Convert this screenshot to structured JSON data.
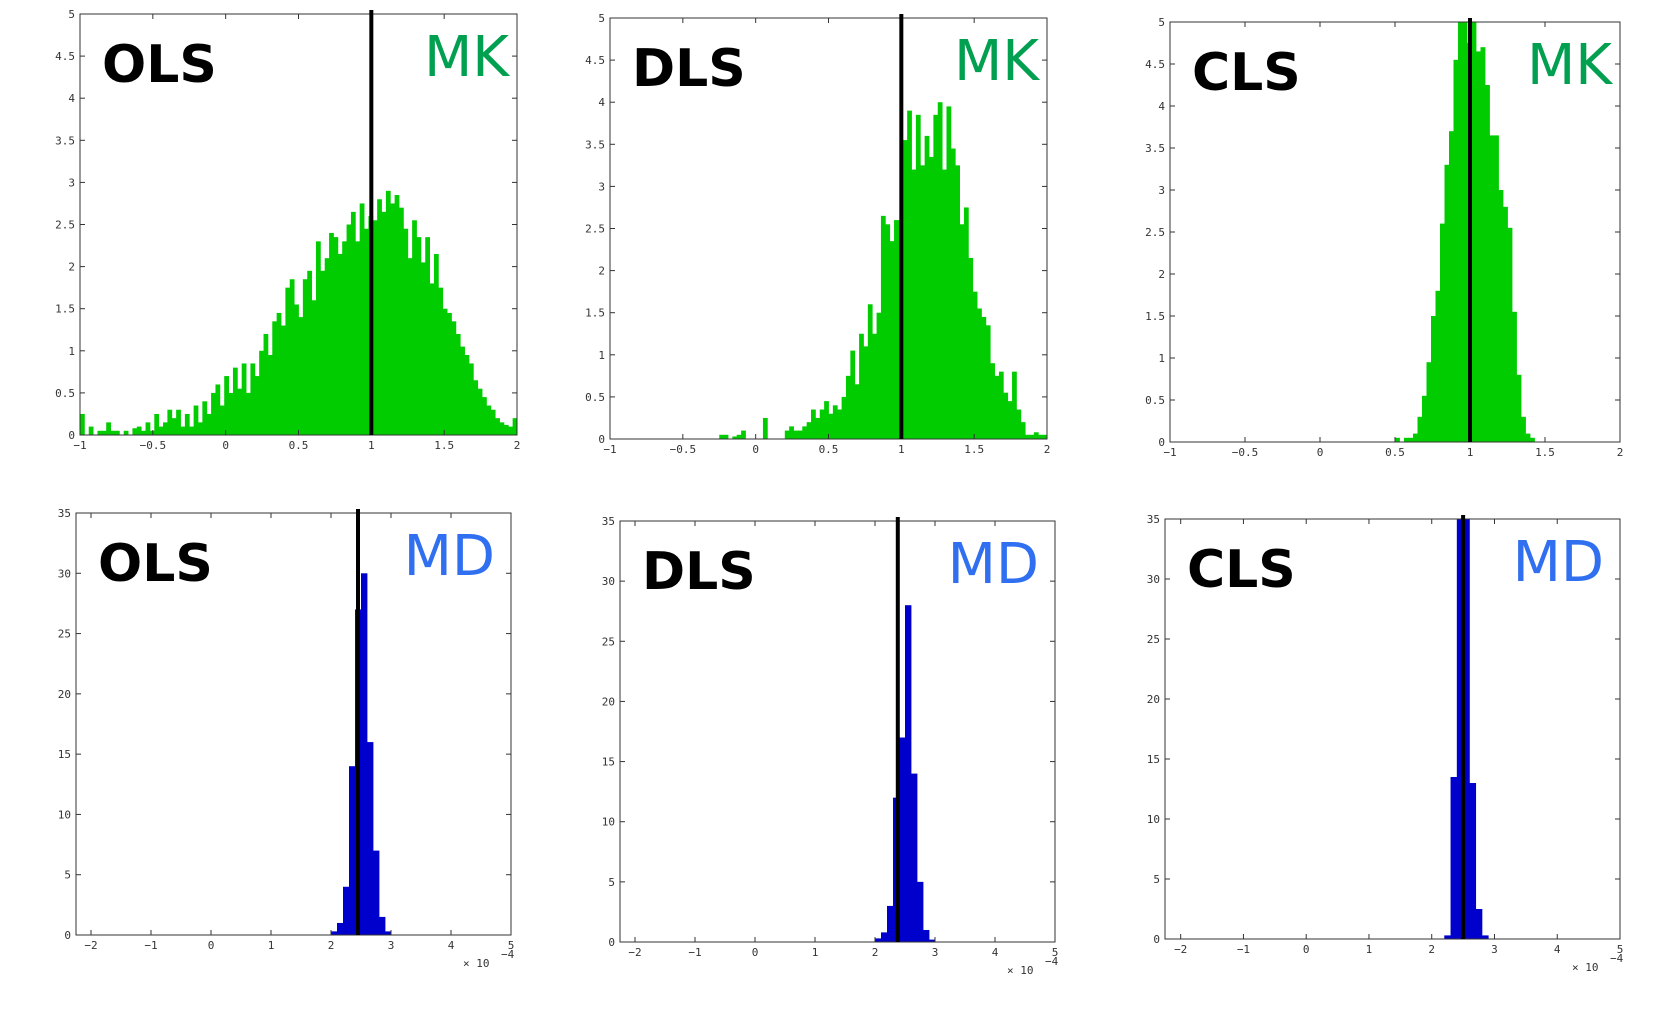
{
  "colors": {
    "mk": "#00cc00",
    "md": "#0000cc",
    "mk_label": "#00a050",
    "md_label": "#3070f0",
    "truth_line": "#000000"
  },
  "multiplier_label": "× 10",
  "multiplier_exponent": "−4",
  "chart_data": [
    {
      "type": "bar",
      "method": "OLS",
      "statistic": "MK",
      "xlim": [
        -1,
        2
      ],
      "ylim": [
        0,
        5
      ],
      "xticks": [
        "−1",
        "−0.5",
        "0",
        "0.5",
        "1",
        "1.5",
        "2"
      ],
      "yticks": [
        "0",
        "0.5",
        "1",
        "1.5",
        "2",
        "2.5",
        "3",
        "3.5",
        "4",
        "4.5",
        "5"
      ],
      "truth_x": 1.0,
      "bin_width": 0.03,
      "x_start": -1.0,
      "values": [
        0.25,
        0,
        0.1,
        0,
        0.05,
        0.05,
        0.15,
        0.05,
        0.05,
        0,
        0.05,
        0,
        0.08,
        0.1,
        0.05,
        0.15,
        0.05,
        0.25,
        0.1,
        0.15,
        0.3,
        0.2,
        0.3,
        0.1,
        0.25,
        0.1,
        0.35,
        0.15,
        0.4,
        0.25,
        0.5,
        0.6,
        0.35,
        0.7,
        0.5,
        0.8,
        0.55,
        0.85,
        0.5,
        0.85,
        0.7,
        1.0,
        1.2,
        0.95,
        1.35,
        1.45,
        1.3,
        1.75,
        1.85,
        1.55,
        1.4,
        1.85,
        1.95,
        1.6,
        2.3,
        1.95,
        2.1,
        2.4,
        2.35,
        2.15,
        2.3,
        2.5,
        2.65,
        2.3,
        2.75,
        2.45,
        2.6,
        2.55,
        2.8,
        2.65,
        2.9,
        2.75,
        2.85,
        2.7,
        2.45,
        2.1,
        2.55,
        2.35,
        2.05,
        2.35,
        1.8,
        2.15,
        1.75,
        1.5,
        1.45,
        1.35,
        1.2,
        1.05,
        0.95,
        0.85,
        0.65,
        0.55,
        0.45,
        0.35,
        0.3,
        0.2,
        0.15,
        0.12,
        0.1,
        0.2
      ]
    },
    {
      "type": "bar",
      "method": "DLS",
      "statistic": "MK",
      "xlim": [
        -1,
        2
      ],
      "ylim": [
        0,
        5
      ],
      "xticks": [
        "−1",
        "−0.5",
        "0",
        "0.5",
        "1",
        "1.5",
        "2"
      ],
      "yticks": [
        "0",
        "0.5",
        "1",
        "1.5",
        "2",
        "2.5",
        "3",
        "3.5",
        "4",
        "4.5",
        "5"
      ],
      "truth_x": 1.0,
      "bin_width": 0.03,
      "x_start": -1.0,
      "values": [
        0,
        0,
        0,
        0,
        0,
        0,
        0,
        0,
        0,
        0,
        0,
        0,
        0,
        0,
        0,
        0,
        0,
        0,
        0,
        0,
        0,
        0,
        0,
        0,
        0,
        0.05,
        0.05,
        0,
        0.03,
        0.05,
        0.1,
        0,
        0,
        0,
        0,
        0.25,
        0,
        0,
        0,
        0,
        0.1,
        0.15,
        0.1,
        0.1,
        0.15,
        0.2,
        0.35,
        0.25,
        0.35,
        0.45,
        0.3,
        0.4,
        0.35,
        0.5,
        0.75,
        1.05,
        0.65,
        1.25,
        1.1,
        1.6,
        1.25,
        1.5,
        2.65,
        2.55,
        2.35,
        2.6,
        2.6,
        3.55,
        3.9,
        3.2,
        3.85,
        3.25,
        3.6,
        3.35,
        3.85,
        4.0,
        3.2,
        3.95,
        3.45,
        3.25,
        2.55,
        2.75,
        2.15,
        1.75,
        1.55,
        1.45,
        1.35,
        0.9,
        0.75,
        0.8,
        0.55,
        0.45,
        0.8,
        0.35,
        0.2,
        0.05,
        0.05,
        0.08,
        0.05,
        0.05
      ]
    },
    {
      "type": "bar",
      "method": "CLS",
      "statistic": "MK",
      "xlim": [
        -1,
        2
      ],
      "ylim": [
        0,
        5
      ],
      "xticks": [
        "−1",
        "−0.5",
        "0",
        "0.5",
        "1",
        "1.5",
        "2"
      ],
      "yticks": [
        "0",
        "0.5",
        "1",
        "1.5",
        "2",
        "2.5",
        "3",
        "3.5",
        "4",
        "4.5",
        "5"
      ],
      "truth_x": 1.0,
      "bin_width": 0.03,
      "x_start": -1.0,
      "values": [
        0,
        0,
        0,
        0,
        0,
        0,
        0,
        0,
        0,
        0,
        0,
        0,
        0,
        0,
        0,
        0,
        0,
        0,
        0,
        0,
        0,
        0,
        0,
        0,
        0,
        0,
        0,
        0,
        0,
        0,
        0,
        0,
        0,
        0,
        0,
        0,
        0,
        0,
        0,
        0,
        0,
        0,
        0,
        0,
        0,
        0,
        0,
        0,
        0,
        0,
        0.05,
        0,
        0.05,
        0.05,
        0.1,
        0.3,
        0.55,
        0.95,
        1.5,
        1.8,
        2.6,
        3.3,
        3.7,
        4.55,
        5.0,
        5.0,
        4.75,
        5.0,
        4.65,
        4.7,
        4.25,
        3.65,
        3.65,
        3.0,
        2.8,
        2.55,
        1.55,
        0.8,
        0.3,
        0.1,
        0.05,
        0,
        0,
        0,
        0,
        0,
        0,
        0,
        0,
        0,
        0,
        0,
        0,
        0,
        0,
        0,
        0,
        0,
        0,
        0
      ]
    },
    {
      "type": "bar",
      "method": "OLS",
      "statistic": "MD",
      "xlim": [
        -2.25,
        5
      ],
      "ylim": [
        0,
        35
      ],
      "xticks": [
        "−2",
        "−1",
        "0",
        "1",
        "2",
        "3",
        "4",
        "5"
      ],
      "yticks": [
        "0",
        "5",
        "10",
        "15",
        "20",
        "25",
        "30",
        "35"
      ],
      "truth_x": 2.45,
      "bin_width": 0.1,
      "x_start": 2.0,
      "values": [
        0.3,
        1,
        4,
        14,
        27,
        30,
        16,
        7,
        1.5,
        0.3
      ]
    },
    {
      "type": "bar",
      "method": "DLS",
      "statistic": "MD",
      "xlim": [
        -2.25,
        5
      ],
      "ylim": [
        0,
        35
      ],
      "xticks": [
        "−2",
        "−1",
        "0",
        "1",
        "2",
        "3",
        "4",
        "5"
      ],
      "yticks": [
        "0",
        "5",
        "10",
        "15",
        "20",
        "25",
        "30",
        "35"
      ],
      "truth_x": 2.38,
      "bin_width": 0.1,
      "x_start": 2.0,
      "values": [
        0.3,
        0.8,
        3,
        12,
        17,
        28,
        14,
        5,
        1,
        0.2
      ]
    },
    {
      "type": "bar",
      "method": "CLS",
      "statistic": "MD",
      "xlim": [
        -2.25,
        5
      ],
      "ylim": [
        0,
        35
      ],
      "xticks": [
        "−2",
        "−1",
        "0",
        "1",
        "2",
        "3",
        "4",
        "5"
      ],
      "yticks": [
        "0",
        "5",
        "10",
        "15",
        "20",
        "25",
        "30",
        "35"
      ],
      "truth_x": 2.5,
      "bin_width": 0.1,
      "x_start": 2.2,
      "values": [
        0.3,
        13.5,
        35,
        35,
        13,
        2.5,
        0.3
      ]
    }
  ]
}
